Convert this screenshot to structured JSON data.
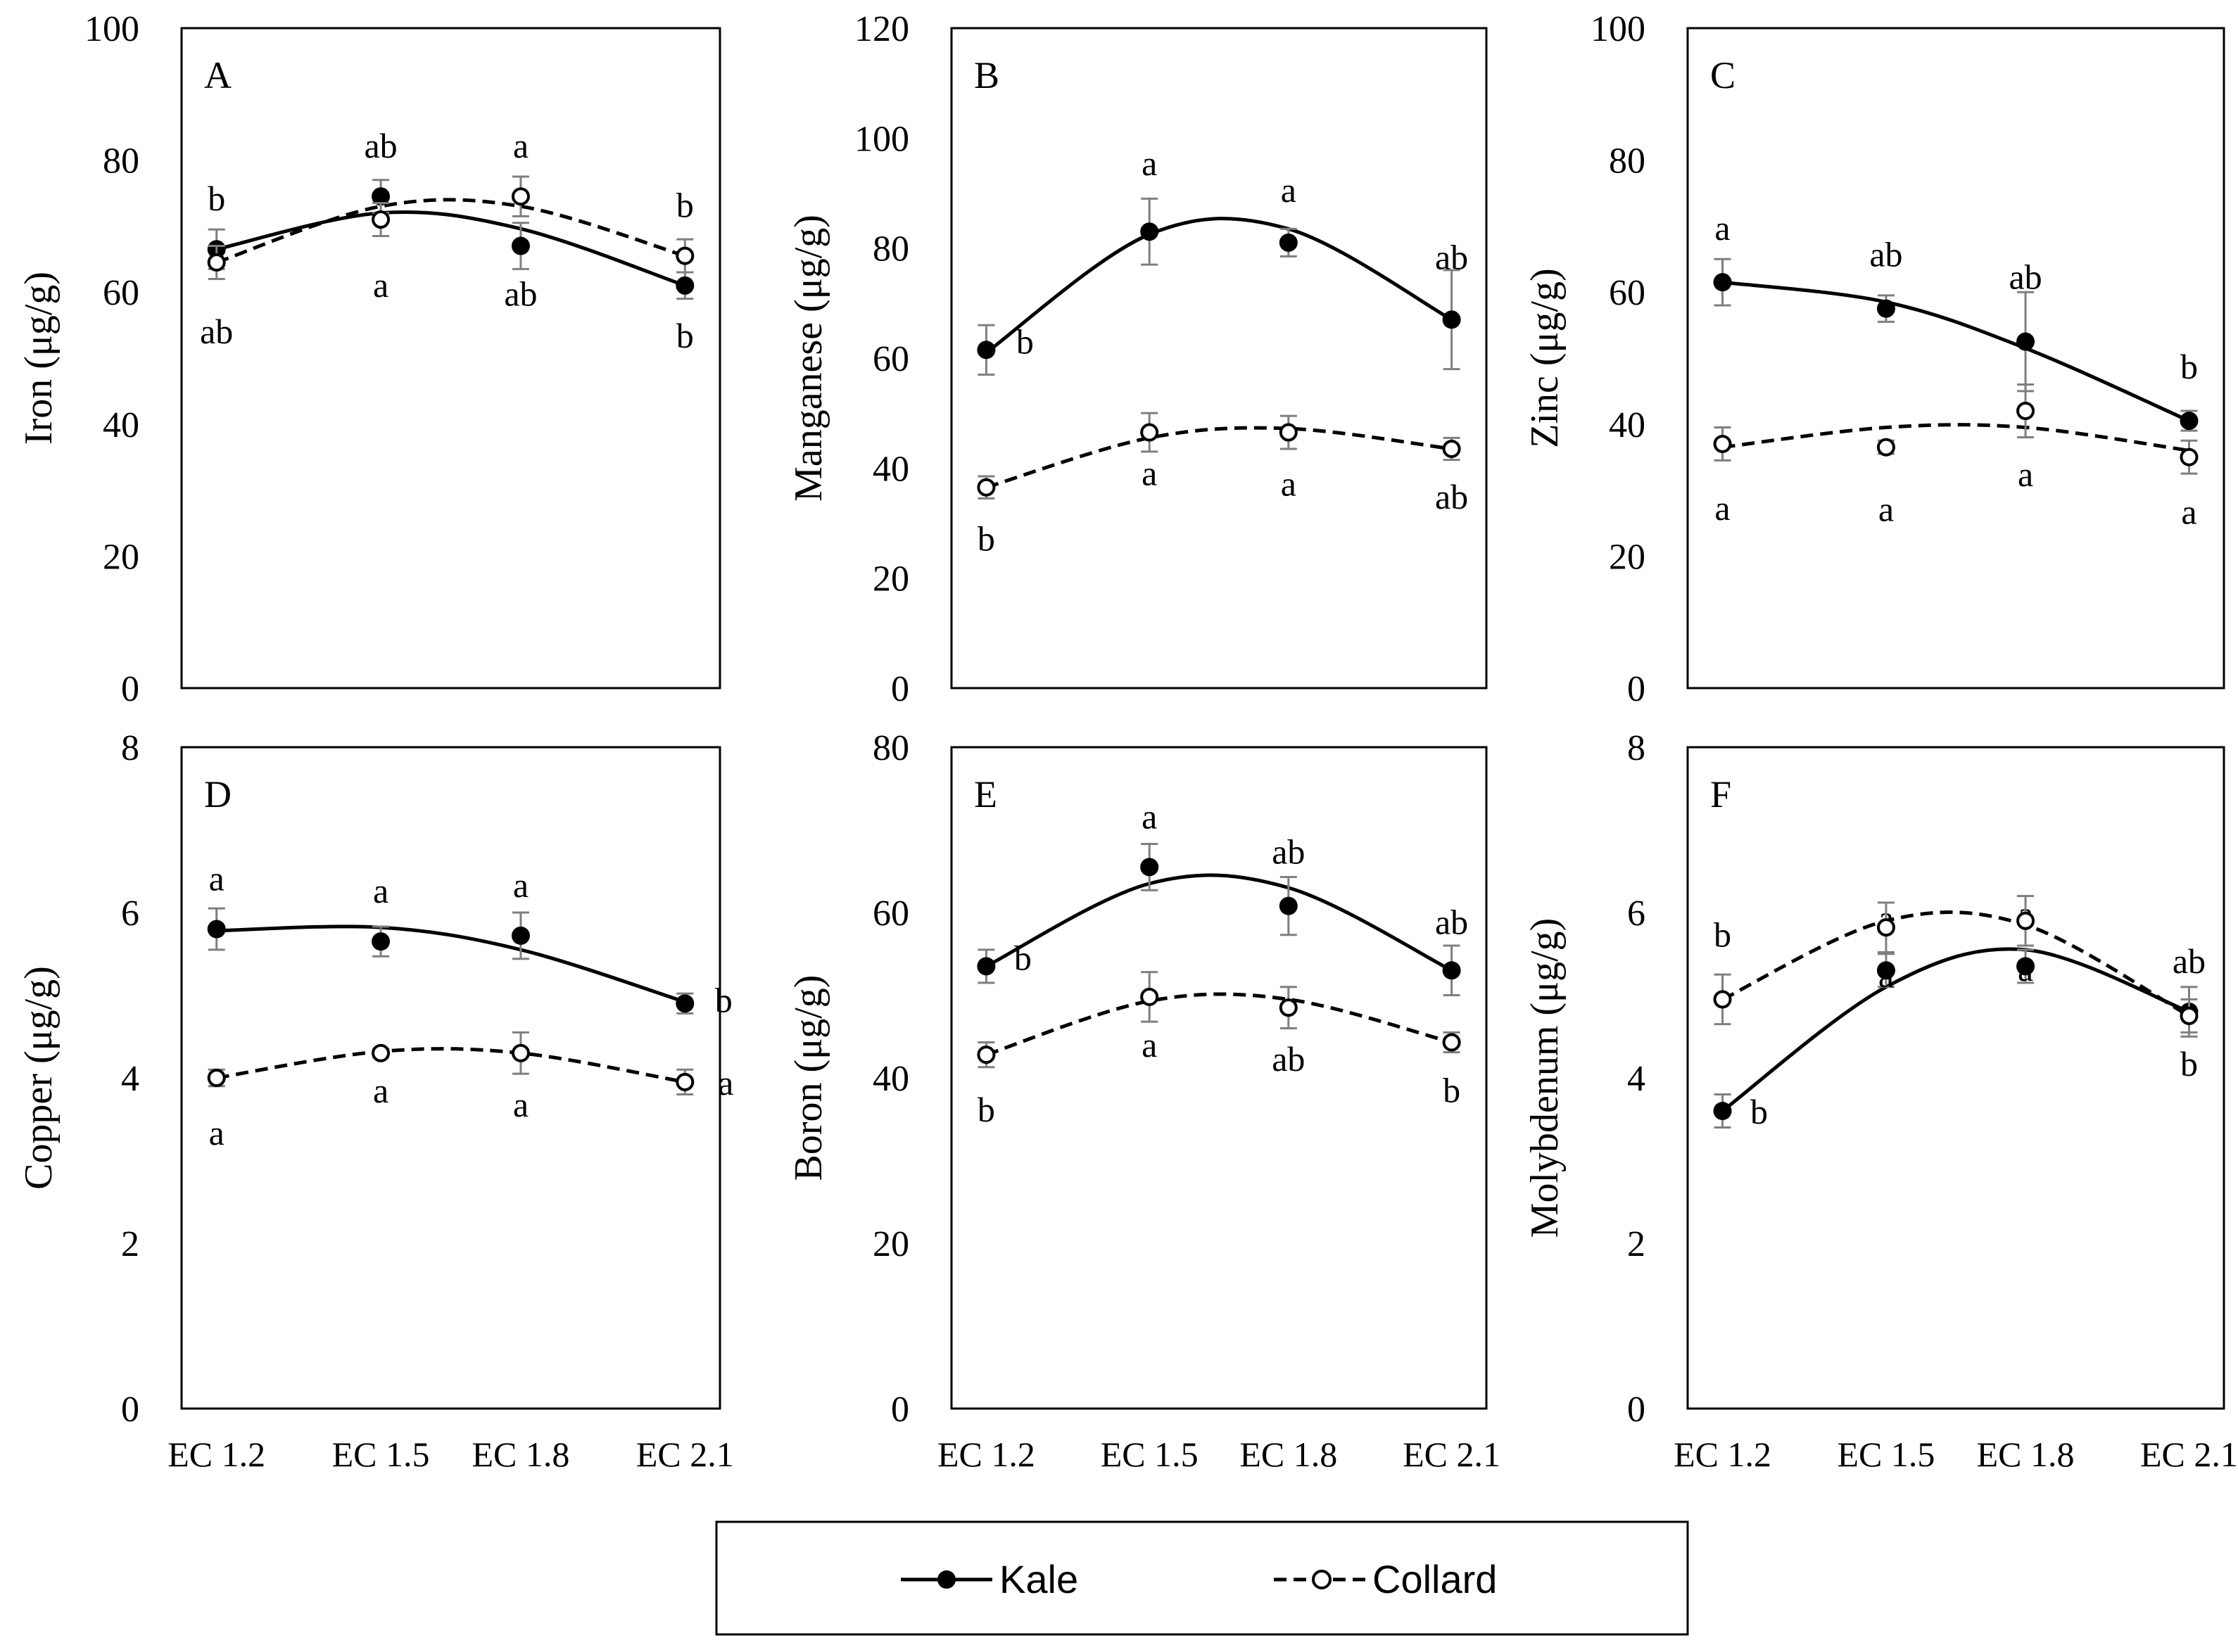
{
  "chart_data": [
    {
      "type": "line",
      "panel": "A",
      "ylabel": "Iron (μg/g)",
      "categories": [
        "EC 1.2",
        "EC 1.5",
        "EC 1.8",
        "EC 2.1"
      ],
      "ylim": [
        0,
        100
      ],
      "yticks": [
        "0",
        "20",
        "40",
        "60",
        "80",
        "100"
      ],
      "series": [
        {
          "name": "Kale",
          "values": [
            66.5,
            74.5,
            67.0,
            61.0
          ],
          "errors": [
            3.0,
            2.5,
            3.5,
            2.0
          ],
          "letters": [
            "b",
            "ab",
            "ab",
            "b"
          ],
          "trend": [
            66.5,
            72.0,
            69.6,
            61.0
          ]
        },
        {
          "name": "Collard",
          "values": [
            64.5,
            71.0,
            74.5,
            65.5
          ],
          "errors": [
            2.5,
            2.5,
            3.0,
            2.5
          ],
          "letters": [
            "ab",
            "a",
            "a",
            "b"
          ],
          "trend": [
            64.5,
            73.0,
            73.0,
            65.5
          ]
        }
      ]
    },
    {
      "type": "line",
      "panel": "B",
      "ylabel": "Manganese (μg/g)",
      "categories": [
        "EC 1.2",
        "EC 1.5",
        "EC 1.8",
        "EC 2.1"
      ],
      "ylim": [
        0,
        120
      ],
      "yticks": [
        "0",
        "20",
        "40",
        "60",
        "80",
        "100",
        "120"
      ],
      "series": [
        {
          "name": "Kale",
          "values": [
            61.5,
            83.0,
            81.0,
            67.0
          ],
          "errors": [
            4.5,
            6.0,
            2.5,
            9.0
          ],
          "letters": [
            "b",
            "a",
            "a",
            "ab"
          ],
          "trend": [
            61.0,
            82.5,
            83.5,
            67.0
          ]
        },
        {
          "name": "Collard",
          "values": [
            36.5,
            46.5,
            46.5,
            43.5
          ],
          "errors": [
            2.0,
            3.5,
            3.0,
            2.0
          ],
          "letters": [
            "b",
            "a",
            "a",
            "ab"
          ],
          "trend": [
            36.5,
            45.5,
            47.2,
            43.5
          ]
        }
      ]
    },
    {
      "type": "line",
      "panel": "C",
      "ylabel": "Zinc (μg/g)",
      "categories": [
        "EC 1.2",
        "EC 1.5",
        "EC 1.8",
        "EC 2.1"
      ],
      "ylim": [
        0,
        100
      ],
      "yticks": [
        "0",
        "20",
        "40",
        "60",
        "80",
        "100"
      ],
      "series": [
        {
          "name": "Kale",
          "values": [
            61.5,
            57.5,
            52.5,
            40.5
          ],
          "errors": [
            3.5,
            2.0,
            7.5,
            1.5
          ],
          "letters": [
            "a",
            "ab",
            "ab",
            "b"
          ],
          "trend": [
            61.5,
            58.5,
            51.5,
            40.5
          ]
        },
        {
          "name": "Collard",
          "values": [
            37.0,
            36.5,
            42.0,
            35.0
          ],
          "errors": [
            2.5,
            1.0,
            4.0,
            2.5
          ],
          "letters": [
            "a",
            "a",
            "a",
            "a"
          ],
          "trend": [
            36.5,
            39.5,
            39.5,
            36.0
          ]
        }
      ]
    },
    {
      "type": "line",
      "panel": "D",
      "ylabel": "Copper (μg/g)",
      "categories": [
        "EC 1.2",
        "EC 1.5",
        "EC 1.8",
        "EC 2.1"
      ],
      "ylim": [
        0,
        8
      ],
      "yticks": [
        "0",
        "2",
        "4",
        "6",
        "8"
      ],
      "series": [
        {
          "name": "Kale",
          "values": [
            5.8,
            5.65,
            5.72,
            4.9
          ],
          "errors": [
            0.25,
            0.18,
            0.28,
            0.12
          ],
          "letters": [
            "a",
            "a",
            "a",
            "b"
          ],
          "trend": [
            5.78,
            5.82,
            5.55,
            4.92
          ]
        },
        {
          "name": "Collard",
          "values": [
            4.0,
            4.3,
            4.3,
            3.95
          ],
          "errors": [
            0.1,
            0.05,
            0.25,
            0.15
          ],
          "letters": [
            "a",
            "a",
            "a",
            "a"
          ],
          "trend": [
            4.0,
            4.32,
            4.3,
            3.95
          ]
        }
      ]
    },
    {
      "type": "line",
      "panel": "E",
      "ylabel": "Boron (μg/g)",
      "categories": [
        "EC 1.2",
        "EC 1.5",
        "EC 1.8",
        "EC 2.1"
      ],
      "ylim": [
        0,
        80
      ],
      "yticks": [
        "0",
        "20",
        "40",
        "60",
        "80"
      ],
      "series": [
        {
          "name": "Kale",
          "values": [
            53.5,
            65.5,
            60.8,
            53.0
          ],
          "errors": [
            2.0,
            2.8,
            3.5,
            3.0
          ],
          "letters": [
            "b",
            "a",
            "ab",
            "ab"
          ],
          "trend": [
            53.5,
            63.5,
            63.0,
            53.0
          ]
        },
        {
          "name": "Collard",
          "values": [
            42.8,
            49.8,
            48.5,
            44.3
          ],
          "errors": [
            1.5,
            3.0,
            2.5,
            1.2
          ],
          "letters": [
            "b",
            "a",
            "ab",
            "b"
          ],
          "trend": [
            42.8,
            49.3,
            49.5,
            44.3
          ]
        }
      ]
    },
    {
      "type": "line",
      "panel": "F",
      "ylabel": "Molybdenum (μg/g)",
      "categories": [
        "EC 1.2",
        "EC 1.5",
        "EC 1.8",
        "EC 2.1"
      ],
      "ylim": [
        0,
        8
      ],
      "yticks": [
        "0",
        "2",
        "4",
        "6",
        "8"
      ],
      "series": [
        {
          "name": "Kale",
          "values": [
            3.6,
            5.3,
            5.35,
            4.8
          ],
          "errors": [
            0.2,
            0.2,
            0.2,
            0.3
          ],
          "letters": [
            "b",
            "a",
            "a",
            "ab"
          ],
          "trend": [
            3.6,
            5.1,
            5.55,
            4.8
          ]
        },
        {
          "name": "Collard",
          "values": [
            4.95,
            5.82,
            5.9,
            4.75
          ],
          "errors": [
            0.3,
            0.3,
            0.3,
            0.2
          ],
          "letters": [
            "b",
            "a",
            "a",
            "b"
          ],
          "trend": [
            4.95,
            5.9,
            5.85,
            4.75
          ]
        }
      ]
    }
  ],
  "legend": {
    "items": [
      {
        "name": "Kale",
        "style": "solid",
        "marker": "filled-circle"
      },
      {
        "name": "Collard",
        "style": "dashed",
        "marker": "open-circle"
      }
    ]
  },
  "colors": {
    "line": "#000000",
    "errorbar": "#7f7f7f",
    "background": "#ffffff"
  }
}
